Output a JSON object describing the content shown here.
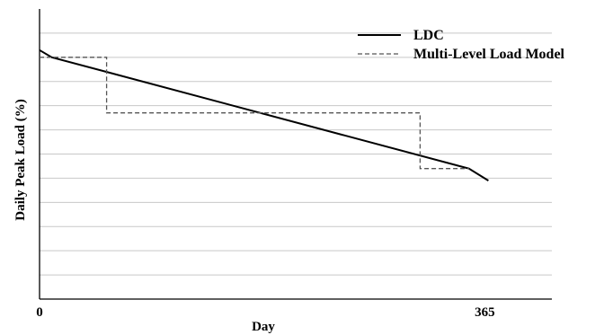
{
  "chart_data": {
    "type": "line",
    "xlabel": "Day",
    "ylabel": "Daily Peak Load (%)",
    "xlim": [
      0,
      420
    ],
    "x_ticks": [
      {
        "value": 0,
        "label": "0"
      },
      {
        "value": 365,
        "label": "365"
      }
    ],
    "ylim": [
      0,
      12
    ],
    "grid": true,
    "grid_lines_y": [
      1,
      2,
      3,
      4,
      5,
      6,
      7,
      8,
      9,
      10,
      11
    ],
    "legend_position": "top-right",
    "series": [
      {
        "name": "LDC",
        "style": "solid",
        "color": "#000000",
        "x": [
          0,
          10,
          352,
          368
        ],
        "y": [
          10.3,
          10.0,
          5.4,
          4.9
        ]
      },
      {
        "name": "Multi-Level Load Model",
        "style": "dashed",
        "color": "#555555",
        "x": [
          0,
          55,
          55,
          312,
          312,
          352
        ],
        "y": [
          10.0,
          10.0,
          7.7,
          7.7,
          5.4,
          5.4
        ]
      }
    ]
  }
}
